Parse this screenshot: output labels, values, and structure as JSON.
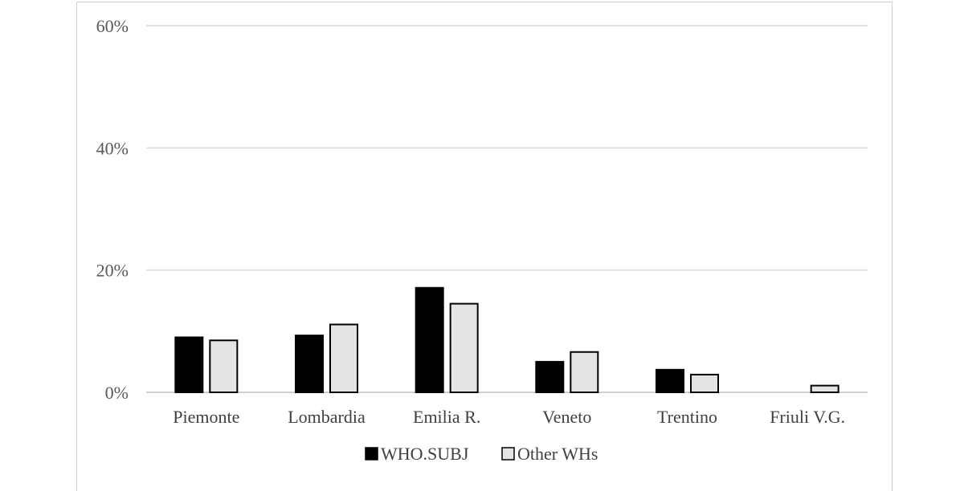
{
  "chart_data": {
    "type": "bar",
    "title": "",
    "xlabel": "",
    "ylabel": "",
    "categories": [
      "Piemonte",
      "Lombardia",
      "Emilia R.",
      "Veneto",
      "Trentino",
      "Friuli V.G."
    ],
    "series": [
      {
        "name": "WHO.SUBJ",
        "color": "#000000",
        "values": [
          9.0,
          9.3,
          17.1,
          5.0,
          3.7,
          0
        ]
      },
      {
        "name": "Other WHs",
        "color": "#e4e4e4",
        "values": [
          8.5,
          11.1,
          14.5,
          6.6,
          2.9,
          1.1
        ]
      }
    ],
    "ylim": [
      0,
      60
    ],
    "yticks": [
      0,
      20,
      40,
      60
    ],
    "ytick_labels": [
      "0%",
      "20%",
      "40%",
      "60%"
    ],
    "grid": true,
    "legend_position": "bottom-center"
  }
}
